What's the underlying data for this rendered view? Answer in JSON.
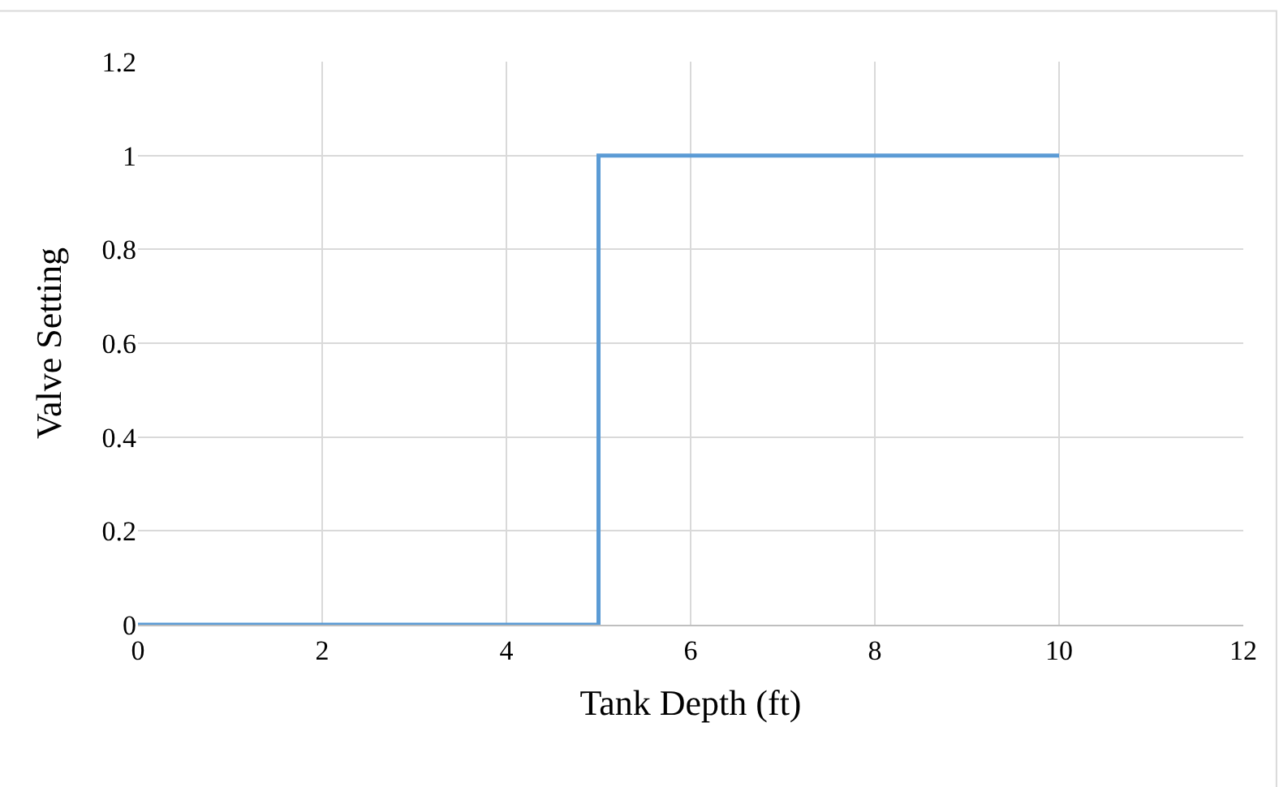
{
  "chart_data": {
    "type": "line",
    "xlabel": "Tank Depth (ft)",
    "ylabel": "Valve Setting",
    "series": [
      {
        "color": "#5b9bd5",
        "x": [
          0,
          5,
          5,
          10
        ],
        "values": [
          0,
          0,
          1,
          1
        ]
      }
    ],
    "xlim": [
      0,
      12
    ],
    "xticks": [
      0,
      2,
      4,
      6,
      8,
      10,
      12
    ],
    "ylim": [
      0,
      1.2
    ],
    "yticks": [
      0,
      0.2,
      0.4,
      0.6,
      0.8,
      1,
      1.2
    ],
    "grid": true,
    "marker": "none",
    "line_style": "solid"
  }
}
